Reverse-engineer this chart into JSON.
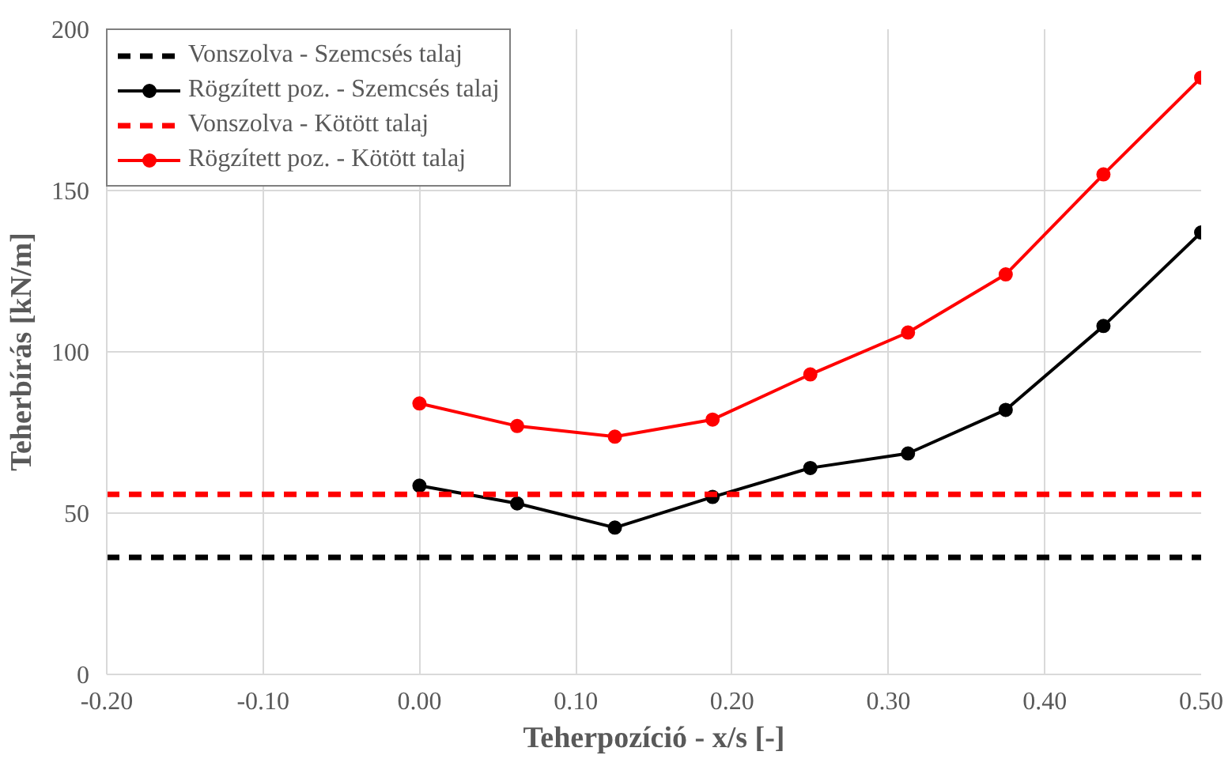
{
  "chart_data": {
    "type": "line",
    "xlabel": "Teherpozíció - x/s [-]",
    "ylabel": "Teherbírás [kN/m]",
    "xlim": [
      -0.2,
      0.5
    ],
    "xticks": [
      {
        "value": -0.2,
        "label": "-0.20"
      },
      {
        "value": -0.1,
        "label": "-0.10"
      },
      {
        "value": 0,
        "label": "0.00"
      },
      {
        "value": 0.1,
        "label": "0.10"
      },
      {
        "value": 0.2,
        "label": "0.20"
      },
      {
        "value": 0.3,
        "label": "0.30"
      },
      {
        "value": 0.4,
        "label": "0.40"
      },
      {
        "value": 0.5,
        "label": "0.50"
      }
    ],
    "ylim": [
      0,
      200
    ],
    "yticks": [
      0,
      50,
      100,
      150,
      200
    ],
    "grid": true,
    "legend": "top left",
    "series": [
      {
        "name": "Vonszolva - Szemcsés talaj",
        "color": "#000000",
        "x": [
          -0.2,
          0.5
        ],
        "values": [
          36.3,
          36.3
        ],
        "marker": "none",
        "line_style": "dashed"
      },
      {
        "name": "Rögzített poz. - Szemcsés talaj",
        "color": "#000000",
        "x": [
          0,
          0.0625,
          0.125,
          0.1875,
          0.25,
          0.3125,
          0.375,
          0.4375,
          0.5
        ],
        "values": [
          58.5,
          53,
          45.5,
          55,
          64,
          68.5,
          82,
          108,
          137
        ],
        "marker": "circle",
        "line_style": "solid"
      },
      {
        "name": "Vonszolva - Kötött talaj",
        "color": "#ff0000",
        "x": [
          -0.2,
          0.5
        ],
        "values": [
          55.8,
          55.8
        ],
        "marker": "none",
        "line_style": "dashed"
      },
      {
        "name": "Rögzített poz. - Kötött talaj",
        "color": "#ff0000",
        "x": [
          0,
          0.0625,
          0.125,
          0.1875,
          0.25,
          0.3125,
          0.375,
          0.4375,
          0.5
        ],
        "values": [
          84,
          77,
          73.7,
          79,
          93,
          106,
          124,
          155,
          185
        ],
        "marker": "circle",
        "line_style": "solid"
      }
    ]
  }
}
